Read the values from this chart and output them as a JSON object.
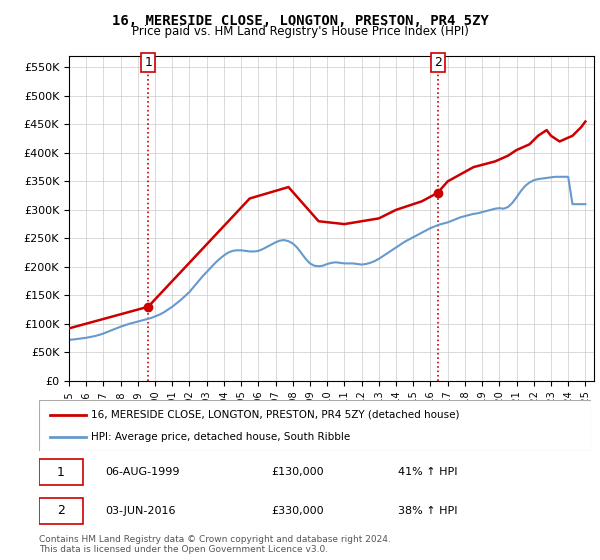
{
  "title": "16, MERESIDE CLOSE, LONGTON, PRESTON, PR4 5ZY",
  "subtitle": "Price paid vs. HM Land Registry's House Price Index (HPI)",
  "ylabel_ticks": [
    "£0",
    "£50K",
    "£100K",
    "£150K",
    "£200K",
    "£250K",
    "£300K",
    "£350K",
    "£400K",
    "£450K",
    "£500K",
    "£550K"
  ],
  "ytick_values": [
    0,
    50000,
    100000,
    150000,
    200000,
    250000,
    300000,
    350000,
    400000,
    450000,
    500000,
    550000
  ],
  "ylim": [
    0,
    570000
  ],
  "xlim_start": 1995.0,
  "xlim_end": 2025.5,
  "sale1": {
    "year": 1999.6,
    "price": 130000,
    "label": "1"
  },
  "sale2": {
    "year": 2016.42,
    "price": 330000,
    "label": "2"
  },
  "sale1_info": "06-AUG-1999    £130,000    41% ↑ HPI",
  "sale2_info": "03-JUN-2016    £330,000    38% ↑ HPI",
  "hpi_color": "#6699cc",
  "price_color": "#cc0000",
  "vline_color": "#cc0000",
  "vline_style": ":",
  "legend_label1": "16, MERESIDE CLOSE, LONGTON, PRESTON, PR4 5ZY (detached house)",
  "legend_label2": "HPI: Average price, detached house, South Ribble",
  "footer": "Contains HM Land Registry data © Crown copyright and database right 2024.\nThis data is licensed under the Open Government Licence v3.0.",
  "hpi_data_x": [
    1995.0,
    1995.25,
    1995.5,
    1995.75,
    1996.0,
    1996.25,
    1996.5,
    1996.75,
    1997.0,
    1997.25,
    1997.5,
    1997.75,
    1998.0,
    1998.25,
    1998.5,
    1998.75,
    1999.0,
    1999.25,
    1999.5,
    1999.75,
    2000.0,
    2000.25,
    2000.5,
    2000.75,
    2001.0,
    2001.25,
    2001.5,
    2001.75,
    2002.0,
    2002.25,
    2002.5,
    2002.75,
    2003.0,
    2003.25,
    2003.5,
    2003.75,
    2004.0,
    2004.25,
    2004.5,
    2004.75,
    2005.0,
    2005.25,
    2005.5,
    2005.75,
    2006.0,
    2006.25,
    2006.5,
    2006.75,
    2007.0,
    2007.25,
    2007.5,
    2007.75,
    2008.0,
    2008.25,
    2008.5,
    2008.75,
    2009.0,
    2009.25,
    2009.5,
    2009.75,
    2010.0,
    2010.25,
    2010.5,
    2010.75,
    2011.0,
    2011.25,
    2011.5,
    2011.75,
    2012.0,
    2012.25,
    2012.5,
    2012.75,
    2013.0,
    2013.25,
    2013.5,
    2013.75,
    2014.0,
    2014.25,
    2014.5,
    2014.75,
    2015.0,
    2015.25,
    2015.5,
    2015.75,
    2016.0,
    2016.25,
    2016.5,
    2016.75,
    2017.0,
    2017.25,
    2017.5,
    2017.75,
    2018.0,
    2018.25,
    2018.5,
    2018.75,
    2019.0,
    2019.25,
    2019.5,
    2019.75,
    2020.0,
    2020.25,
    2020.5,
    2020.75,
    2021.0,
    2021.25,
    2021.5,
    2021.75,
    2022.0,
    2022.25,
    2022.5,
    2022.75,
    2023.0,
    2023.25,
    2023.5,
    2023.75,
    2024.0,
    2024.25,
    2024.5,
    2024.75,
    2025.0
  ],
  "hpi_data_y": [
    72000,
    72500,
    73500,
    74500,
    75500,
    77000,
    78500,
    80500,
    83000,
    86000,
    89000,
    92000,
    95000,
    97500,
    100000,
    102000,
    104000,
    106000,
    108000,
    110000,
    113000,
    116000,
    120000,
    125000,
    130000,
    136000,
    142000,
    149000,
    156000,
    165000,
    174000,
    183000,
    191000,
    199000,
    207000,
    214000,
    220000,
    225000,
    228000,
    229000,
    229000,
    228000,
    227000,
    227000,
    228000,
    231000,
    235000,
    239000,
    243000,
    246000,
    247000,
    245000,
    241000,
    234000,
    224000,
    214000,
    206000,
    202000,
    201000,
    202000,
    205000,
    207000,
    208000,
    207000,
    206000,
    206000,
    206000,
    205000,
    204000,
    205000,
    207000,
    210000,
    214000,
    219000,
    224000,
    229000,
    234000,
    239000,
    244000,
    248000,
    252000,
    256000,
    260000,
    264000,
    268000,
    271000,
    274000,
    276000,
    278000,
    281000,
    284000,
    287000,
    289000,
    291000,
    293000,
    294000,
    296000,
    298000,
    300000,
    302000,
    303000,
    302000,
    305000,
    312000,
    322000,
    333000,
    342000,
    348000,
    352000,
    354000,
    355000,
    356000,
    357000,
    358000,
    358000,
    358000,
    358000,
    310000,
    310000,
    310000,
    310000
  ],
  "price_data_x": [
    1995.0,
    1999.6,
    2005.5,
    2007.75,
    2009.5,
    2011.0,
    2013.0,
    2014.0,
    2015.5,
    2016.42,
    2017.0,
    2018.5,
    2019.75,
    2020.5,
    2021.0,
    2021.75,
    2022.25,
    2022.75,
    2023.0,
    2023.5,
    2024.25,
    2024.75,
    2025.0
  ],
  "price_data_y": [
    92000,
    130000,
    320000,
    340000,
    280000,
    275000,
    285000,
    300000,
    315000,
    330000,
    350000,
    375000,
    385000,
    395000,
    405000,
    415000,
    430000,
    440000,
    430000,
    420000,
    430000,
    445000,
    455000
  ]
}
